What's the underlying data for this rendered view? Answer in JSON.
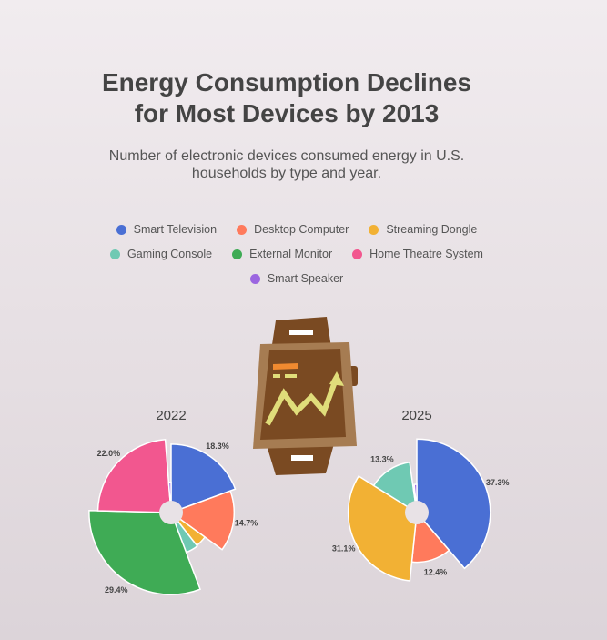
{
  "header": {
    "title_line1": "Energy Consumption Declines",
    "title_line2": "for Most Devices by 2013",
    "subtitle_line1": "Number of electronic devices consumed energy in U.S.",
    "subtitle_line2": "households by type and year."
  },
  "legend": [
    {
      "name": "Smart Television",
      "color": "#4a6fd4"
    },
    {
      "name": "Desktop Computer",
      "color": "#ff7a5c"
    },
    {
      "name": "Streaming Dongle",
      "color": "#f2b134"
    },
    {
      "name": "Gaming Console",
      "color": "#6fc9b3"
    },
    {
      "name": "External Monitor",
      "color": "#3fab55"
    },
    {
      "name": "Home Theatre System",
      "color": "#f2578f"
    },
    {
      "name": "Smart Speaker",
      "color": "#9b66e0"
    }
  ],
  "decoration": {
    "icon": "smartwatch-icon"
  },
  "chart_data": [
    {
      "type": "pie",
      "variant": "radial-sector (nightingale rose)",
      "title": "2022",
      "categories": [
        "Smart Television",
        "Desktop Computer",
        "Streaming Dongle",
        "Gaming Console",
        "External Monitor",
        "Home Theatre System",
        "Smart Speaker"
      ],
      "values": [
        18.3,
        14.7,
        4.2,
        4.5,
        29.4,
        22.0,
        1.2
      ],
      "labels": [
        "18.3%",
        "14.7%",
        "",
        "",
        "29.4%",
        "22.0%",
        ""
      ]
    },
    {
      "type": "pie",
      "variant": "radial-sector (nightingale rose)",
      "title": "2025",
      "categories": [
        "Smart Television",
        "Desktop Computer",
        "Streaming Dongle",
        "Gaming Console",
        "External Monitor",
        "Home Theatre System",
        "Smart Speaker"
      ],
      "values": [
        37.3,
        12.4,
        31.1,
        13.3,
        0.5,
        0.3,
        1.4
      ],
      "labels": [
        "37.3%",
        "12.4%",
        "31.1%",
        "13.3%",
        "",
        "",
        ""
      ]
    }
  ]
}
